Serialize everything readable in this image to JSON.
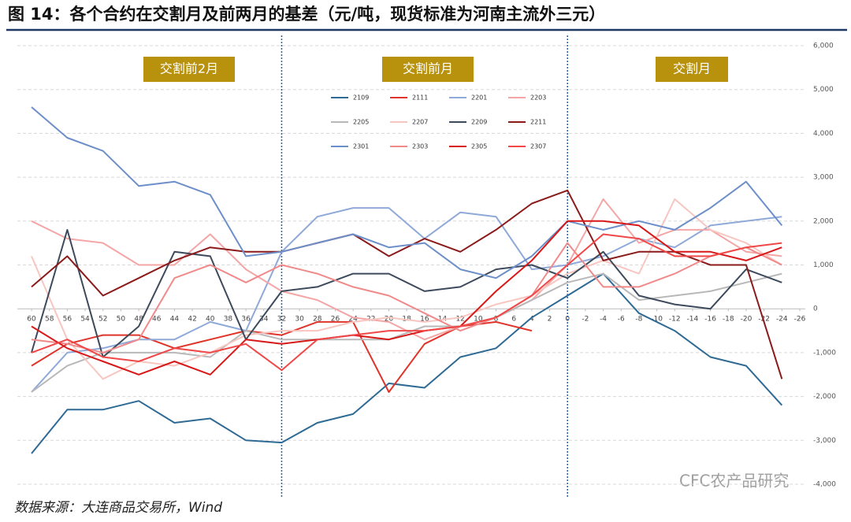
{
  "chart_data": {
    "type": "line",
    "title": "图 14：各个合约在交割月及前两月的基差（元/吨，现货标准为河南主流外三元）",
    "source": "数据来源：大连商品交易所，Wind",
    "watermark": "CFC农产品研究",
    "annotations": [
      "交割前2月",
      "交割前月",
      "交割月"
    ],
    "x": [
      60,
      56,
      52,
      48,
      44,
      40,
      36,
      32,
      28,
      24,
      20,
      16,
      12,
      8,
      4,
      0,
      -4,
      -8,
      -12,
      -16,
      -20,
      -24
    ],
    "xlim": [
      61,
      -27
    ],
    "xticks": [
      60,
      58,
      56,
      54,
      52,
      50,
      48,
      46,
      44,
      42,
      40,
      38,
      36,
      34,
      32,
      30,
      28,
      26,
      24,
      22,
      20,
      18,
      16,
      14,
      12,
      10,
      8,
      6,
      4,
      2,
      0,
      -2,
      -4,
      -6,
      -8,
      -10,
      -12,
      -14,
      -16,
      -18,
      -20,
      -22,
      -24,
      -26
    ],
    "dividers": [
      32,
      0
    ],
    "ylim": [
      -4000,
      6000
    ],
    "yticks": [
      {
        "value": -4000,
        "label": "-4,000"
      },
      {
        "value": -3000,
        "label": "-3,000"
      },
      {
        "value": -2000,
        "label": "-2,000"
      },
      {
        "value": -1000,
        "label": "-1,000"
      },
      0,
      {
        "value": 1000,
        "label": "1,000"
      },
      {
        "value": 2000,
        "label": "2,000"
      },
      {
        "value": 3000,
        "label": "3,000"
      },
      {
        "value": 4000,
        "label": "4,000"
      },
      {
        "value": 5000,
        "label": "5,000"
      },
      {
        "value": 6000,
        "label": "6,000"
      }
    ],
    "grid": true,
    "series": [
      {
        "name": "2109",
        "color": "#2e6a94",
        "values": [
          -3300,
          -2300,
          -2300,
          -2100,
          -2600,
          -2500,
          -3000,
          -3050,
          -2600,
          -2400,
          -1700,
          -1800,
          -1100,
          -900,
          -200,
          300,
          800,
          -100,
          -500,
          -1100,
          -1300,
          -2200
        ]
      },
      {
        "name": "2111",
        "color": "#e0342a",
        "values": [
          -1300,
          -800,
          -600,
          -600,
          -900,
          -700,
          -500,
          -600,
          -300,
          -300,
          -1900,
          -800,
          -400,
          -300,
          -500,
          null,
          null,
          null,
          null,
          null,
          null,
          null
        ]
      },
      {
        "name": "2201",
        "color": "#8fa9d8",
        "values": [
          -1900,
          -1000,
          -900,
          -700,
          -700,
          -300,
          -500,
          1300,
          2100,
          2300,
          2300,
          1600,
          2200,
          2100,
          900,
          1000,
          1200,
          1600,
          1400,
          1900,
          2000,
          2100
        ]
      },
      {
        "name": "2203",
        "color": "#f4a6a6",
        "values": [
          2000,
          1600,
          1500,
          1000,
          1000,
          1700,
          900,
          400,
          200,
          -200,
          -300,
          -700,
          -400,
          -200,
          200,
          1000,
          2500,
          1500,
          1800,
          1800,
          1300,
          1200
        ]
      },
      {
        "name": "2205",
        "color": "#b8b8b8",
        "values": [
          -1900,
          -1300,
          -1000,
          -1000,
          -1000,
          -1100,
          -500,
          -700,
          -700,
          -700,
          -700,
          -400,
          -400,
          -200,
          200,
          600,
          800,
          200,
          300,
          400,
          600,
          800
        ]
      },
      {
        "name": "2207",
        "color": "#f8c6c0",
        "values": [
          1200,
          -700,
          -1600,
          -1200,
          -1300,
          -1000,
          -600,
          -500,
          -500,
          -300,
          -200,
          -300,
          -200,
          100,
          300,
          800,
          1100,
          800,
          2500,
          1800,
          1500,
          1000
        ]
      },
      {
        "name": "2209",
        "color": "#3d4a5c",
        "values": [
          -1000,
          1800,
          -1100,
          -400,
          1300,
          1200,
          -700,
          400,
          500,
          800,
          800,
          400,
          500,
          900,
          1000,
          700,
          1300,
          300,
          100,
          0,
          900,
          600
        ]
      },
      {
        "name": "2211",
        "color": "#8b1a1a",
        "values": [
          500,
          1200,
          300,
          700,
          1100,
          1400,
          1300,
          1300,
          1500,
          1700,
          1200,
          1600,
          1300,
          1800,
          2400,
          2700,
          1100,
          1300,
          1300,
          1000,
          1000,
          -1600
        ]
      },
      {
        "name": "2301",
        "color": "#6d8fc9",
        "values": [
          4600,
          3900,
          3600,
          2800,
          2900,
          2600,
          1200,
          1300,
          1500,
          1700,
          1400,
          1500,
          900,
          700,
          1200,
          2000,
          1800,
          2000,
          1800,
          2300,
          2900,
          1900
        ]
      },
      {
        "name": "2303",
        "color": "#f08a8a",
        "values": [
          -700,
          -800,
          -1000,
          -700,
          700,
          1000,
          600,
          1000,
          800,
          500,
          300,
          -100,
          -500,
          -200,
          300,
          1500,
          500,
          500,
          800,
          1200,
          1400,
          1000
        ]
      },
      {
        "name": "2305",
        "color": "#d81818",
        "values": [
          -400,
          -900,
          -1200,
          -1500,
          -1200,
          -1500,
          -700,
          -800,
          -700,
          -600,
          -700,
          -500,
          -400,
          400,
          1100,
          2000,
          2000,
          1900,
          1300,
          1300,
          1100,
          1400
        ]
      },
      {
        "name": "2307",
        "color": "#f04848",
        "values": [
          -1000,
          -700,
          -1100,
          -1200,
          -900,
          -1000,
          -800,
          -1400,
          -700,
          -600,
          -500,
          -500,
          -400,
          -200,
          300,
          1000,
          1700,
          1600,
          1200,
          1200,
          1400,
          1500
        ]
      }
    ]
  }
}
